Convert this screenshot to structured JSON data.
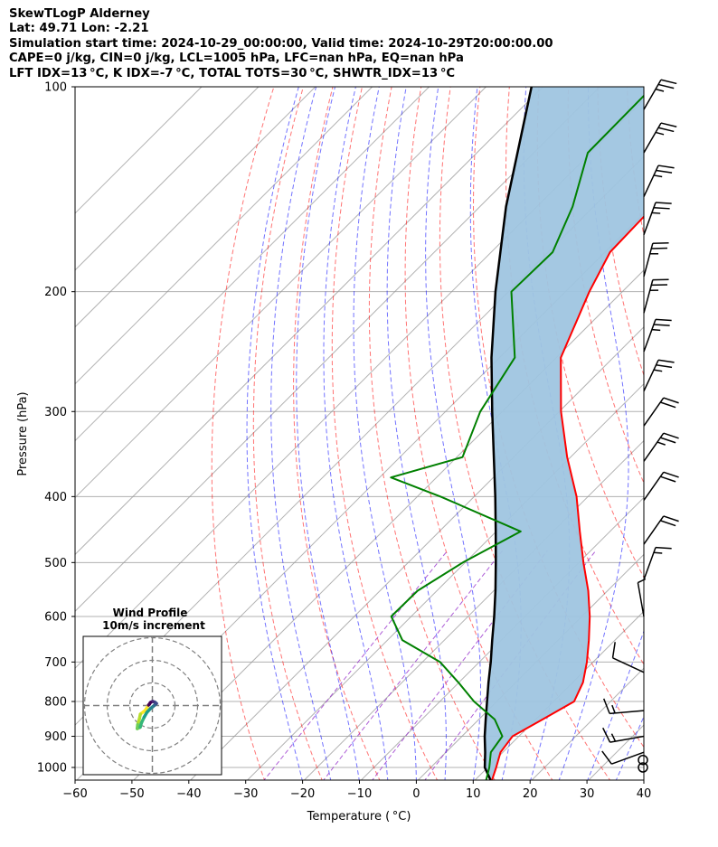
{
  "header": {
    "line1": "SkewTLogP Alderney",
    "line2": "Lat: 49.71   Lon: -2.21",
    "line3": "Simulation start time: 2024-10-29_00:00:00, Valid time: 2024-10-29T20:00:00.00",
    "line4": "CAPE=0 j/kg, CIN=0 j/kg, LCL=1005 hPa, LFC=nan hPa, EQ=nan hPa",
    "line5": "LFT IDX=13 °C, K IDX=-7 °C, TOTAL TOTS=30 °C, SHWTR_IDX=13 °C"
  },
  "chart_data": {
    "type": "line",
    "xlabel": "Temperature ( °C)",
    "ylabel": "Pressure (hPa)",
    "x_ticks": [
      "−60",
      "−50",
      "−40",
      "−30",
      "−20",
      "−10",
      "0",
      "10",
      "20",
      "30",
      "40"
    ],
    "y_ticks": [
      "100",
      "200",
      "300",
      "400",
      "500",
      "600",
      "700",
      "800",
      "900",
      "1000"
    ],
    "xlim": [
      -60,
      40
    ],
    "ylim": [
      1050,
      100
    ],
    "y_scale": "log",
    "skew": "skew-T",
    "grid": true,
    "colors": {
      "temperature": "#ff0000",
      "dewpoint": "#008000",
      "parcel": "#000000",
      "cin_fill": "#9fc5e0",
      "dry_adiabats": "#ff0000",
      "moist_adiabats": "#0000ff",
      "mixing_ratio": "#9933cc",
      "isotherms": "#999999"
    },
    "series": [
      {
        "role": "temperature",
        "points": [
          [
            1050,
            13.2
          ],
          [
            1000,
            11.5
          ],
          [
            950,
            9.6
          ],
          [
            900,
            8.9
          ],
          [
            850,
            11.2
          ],
          [
            800,
            13.6
          ],
          [
            750,
            11.8
          ],
          [
            700,
            8.9
          ],
          [
            650,
            5.4
          ],
          [
            600,
            1.4
          ],
          [
            550,
            -3.4
          ],
          [
            500,
            -9.2
          ],
          [
            450,
            -15.3
          ],
          [
            400,
            -22.0
          ],
          [
            350,
            -30.6
          ],
          [
            300,
            -39.7
          ],
          [
            250,
            -49.2
          ],
          [
            200,
            -55.8
          ],
          [
            175,
            -59.1
          ],
          [
            150,
            -59.5
          ],
          [
            125,
            -61.9
          ],
          [
            100,
            -65.0
          ]
        ]
      },
      {
        "role": "dewpoint",
        "points": [
          [
            1050,
            12.2
          ],
          [
            1000,
            10.3
          ],
          [
            950,
            7.9
          ],
          [
            900,
            7.1
          ],
          [
            850,
            2.8
          ],
          [
            800,
            -4.0
          ],
          [
            750,
            -10.1
          ],
          [
            700,
            -16.9
          ],
          [
            650,
            -27.4
          ],
          [
            600,
            -33.5
          ],
          [
            550,
            -33.4
          ],
          [
            500,
            -30.4
          ],
          [
            450,
            -25.7
          ],
          [
            400,
            -45.9
          ],
          [
            375,
            -58.0
          ],
          [
            350,
            -49.0
          ],
          [
            300,
            -53.9
          ],
          [
            250,
            -57.3
          ],
          [
            200,
            -69.5
          ],
          [
            175,
            -69.2
          ],
          [
            150,
            -73.7
          ],
          [
            125,
            -80.5
          ],
          [
            100,
            -80.7
          ]
        ]
      },
      {
        "role": "parcel",
        "points": [
          [
            1050,
            13.2
          ],
          [
            1000,
            9.5
          ],
          [
            950,
            6.9
          ],
          [
            900,
            4.0
          ],
          [
            850,
            1.2
          ],
          [
            800,
            -1.7
          ],
          [
            750,
            -4.8
          ],
          [
            700,
            -8.0
          ],
          [
            650,
            -11.6
          ],
          [
            600,
            -15.4
          ],
          [
            550,
            -19.7
          ],
          [
            500,
            -24.6
          ],
          [
            450,
            -30.1
          ],
          [
            400,
            -36.3
          ],
          [
            350,
            -43.5
          ],
          [
            300,
            -51.8
          ],
          [
            250,
            -61.4
          ],
          [
            200,
            -72.3
          ],
          [
            150,
            -85.4
          ],
          [
            100,
            -102.0
          ]
        ]
      }
    ],
    "wind_barbs": [
      {
        "p": 1000,
        "speed_kt": 0,
        "dir_deg": 0
      },
      {
        "p": 975,
        "speed_kt": 0,
        "dir_deg": 0
      },
      {
        "p": 950,
        "speed_kt": 10,
        "dir_deg": 250
      },
      {
        "p": 900,
        "speed_kt": 15,
        "dir_deg": 260
      },
      {
        "p": 825,
        "speed_kt": 15,
        "dir_deg": 265
      },
      {
        "p": 725,
        "speed_kt": 10,
        "dir_deg": 295
      },
      {
        "p": 600,
        "speed_kt": 5,
        "dir_deg": 350
      },
      {
        "p": 530,
        "speed_kt": 15,
        "dir_deg": 20
      },
      {
        "p": 470,
        "speed_kt": 20,
        "dir_deg": 35
      },
      {
        "p": 405,
        "speed_kt": 20,
        "dir_deg": 35
      },
      {
        "p": 355,
        "speed_kt": 25,
        "dir_deg": 35
      },
      {
        "p": 315,
        "speed_kt": 20,
        "dir_deg": 35
      },
      {
        "p": 280,
        "speed_kt": 25,
        "dir_deg": 25
      },
      {
        "p": 245,
        "speed_kt": 25,
        "dir_deg": 20
      },
      {
        "p": 215,
        "speed_kt": 25,
        "dir_deg": 15
      },
      {
        "p": 190,
        "speed_kt": 25,
        "dir_deg": 15
      },
      {
        "p": 165,
        "speed_kt": 25,
        "dir_deg": 20
      },
      {
        "p": 145,
        "speed_kt": 25,
        "dir_deg": 25
      },
      {
        "p": 125,
        "speed_kt": 25,
        "dir_deg": 30
      },
      {
        "p": 108,
        "speed_kt": 25,
        "dir_deg": 30
      }
    ],
    "inset": {
      "title": "Wind Profile",
      "subtitle": "10m/s increment",
      "rings_ms": [
        10,
        20,
        30
      ],
      "hodograph_uv": [
        [
          -1.5,
          0.5
        ],
        [
          -3.2,
          -2.2
        ],
        [
          -5.3,
          -3.8
        ],
        [
          -5.8,
          -6.1
        ],
        [
          -6.5,
          -8.5
        ],
        [
          -6.7,
          -10.2
        ],
        [
          -5.4,
          -9.6
        ],
        [
          -4.8,
          -7.6
        ],
        [
          -3.6,
          -5.1
        ],
        [
          -2.4,
          -3.0
        ],
        [
          -0.8,
          -1.3
        ],
        [
          0.2,
          -0.5
        ],
        [
          0.9,
          0.1
        ],
        [
          1.2,
          0.5
        ],
        [
          1.8,
          0.9
        ],
        [
          1.1,
          1.5
        ],
        [
          0.2,
          1.8
        ],
        [
          -0.4,
          1.6
        ],
        [
          -0.9,
          1.3
        ],
        [
          -1.3,
          0.6
        ],
        [
          -1.7,
          0.2
        ]
      ]
    }
  }
}
